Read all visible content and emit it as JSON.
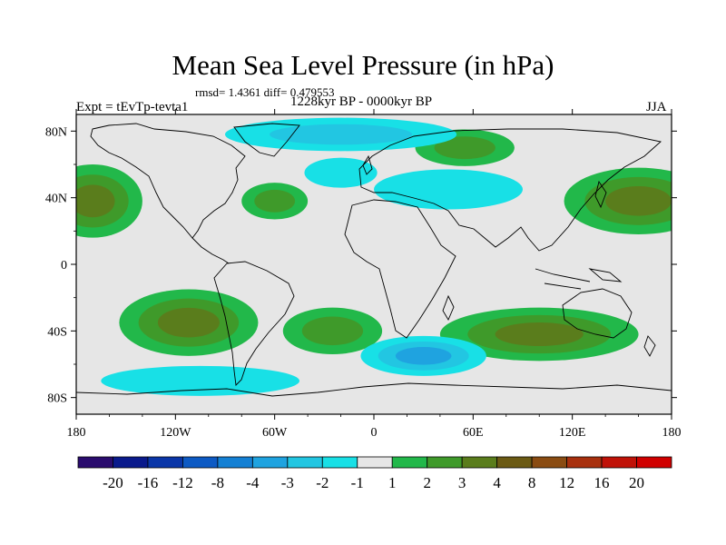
{
  "chart_data": {
    "type": "heatmap",
    "title": "Mean Sea Level Pressure (in hPa)",
    "stats_line": "rmsd= 1.4361 diff= 0.479553",
    "left_label": "Expt = tEvTp-tevta1",
    "center_label": "1228kyr BP - 0000kyr BP",
    "right_label": "JJA",
    "x_axis": {
      "range": [
        -180,
        180
      ],
      "tick_values": [
        -180,
        -120,
        -60,
        0,
        60,
        120,
        180
      ],
      "tick_labels": [
        "180",
        "120W",
        "60W",
        "0",
        "60E",
        "120E",
        "180"
      ]
    },
    "y_axis": {
      "range": [
        -90,
        90
      ],
      "tick_values": [
        80,
        40,
        0,
        -40,
        -80
      ],
      "tick_labels": [
        "80N",
        "40N",
        "0",
        "40S",
        "80S"
      ]
    },
    "colorbar": {
      "boundaries": [
        -20,
        -16,
        -12,
        -8,
        -4,
        -3,
        -2,
        -1,
        1,
        2,
        3,
        4,
        8,
        12,
        16,
        20
      ],
      "tick_labels": [
        "-20",
        "-16",
        "-12",
        "-8",
        "-4",
        "-3",
        "-2",
        "-1",
        "1",
        "2",
        "3",
        "4",
        "8",
        "12",
        "16",
        "20"
      ],
      "colors": [
        "#2a0c6e",
        "#0a1a8c",
        "#0a36a8",
        "#0d5ac4",
        "#1480d4",
        "#1fa3e0",
        "#22c6e2",
        "#18e0e6",
        "#e6e6e6",
        "#22b84a",
        "#3f9a2a",
        "#5a7d1c",
        "#6b5a14",
        "#8a4c12",
        "#a8300e",
        "#c01208",
        "#d00000"
      ]
    },
    "anomaly_regions": [
      {
        "name": "north-pacific-high",
        "lon": -170,
        "lat": 38,
        "rlon": 30,
        "rlat": 22,
        "value": 3.5
      },
      {
        "name": "south-east-pacific-high",
        "lon": -112,
        "lat": -35,
        "rlon": 42,
        "rlat": 20,
        "value": 3.5
      },
      {
        "name": "north-atlantic-ridge",
        "lon": -60,
        "lat": 38,
        "rlon": 20,
        "rlat": 11,
        "value": 2
      },
      {
        "name": "south-atlantic-high",
        "lon": -25,
        "lat": -40,
        "rlon": 30,
        "rlat": 14,
        "value": 2
      },
      {
        "name": "siberian-high",
        "lon": 55,
        "lat": 70,
        "rlon": 30,
        "rlat": 11,
        "value": 2
      },
      {
        "name": "west-pacific-high",
        "lon": 160,
        "lat": 38,
        "rlon": 45,
        "rlat": 20,
        "value": 3.5
      },
      {
        "name": "south-indian-high",
        "lon": 100,
        "lat": -42,
        "rlon": 60,
        "rlat": 16,
        "value": 3.5
      },
      {
        "name": "southern-ocean-low",
        "lon": 30,
        "lat": -55,
        "rlon": 38,
        "rlat": 12,
        "value": -3
      },
      {
        "name": "arctic-low",
        "lon": -20,
        "lat": 78,
        "rlon": 70,
        "rlat": 10,
        "value": -2.5
      },
      {
        "name": "north-atlantic-low",
        "lon": -20,
        "lat": 55,
        "rlon": 22,
        "rlat": 9,
        "value": -1.5
      },
      {
        "name": "europe-asia-low",
        "lon": 45,
        "lat": 45,
        "rlon": 45,
        "rlat": 12,
        "value": -1.5
      },
      {
        "name": "south-pacific-low",
        "lon": -105,
        "lat": -70,
        "rlon": 60,
        "rlat": 9,
        "value": -1.5
      }
    ]
  }
}
